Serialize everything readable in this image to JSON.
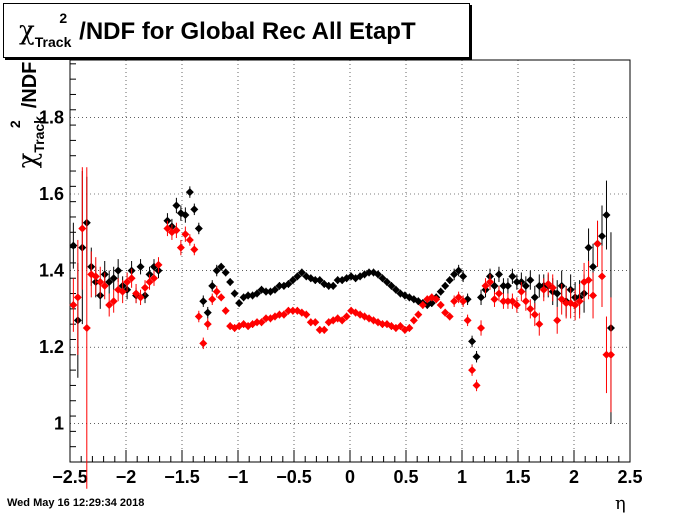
{
  "title": {
    "chi": "χ",
    "sup": "2",
    "sub": "Track",
    "rest": "/NDF for Global Rec All EtapT"
  },
  "ylabel": {
    "chi": "χ",
    "sup": "2",
    "sub": "Track",
    "rest": "/NDF"
  },
  "xlabel": "η",
  "timestamp": "Wed May 16 12:29:34 2018",
  "chart_data": {
    "type": "scatter",
    "xlim": [
      -2.5,
      2.5
    ],
    "ylim": [
      0.9,
      1.95
    ],
    "grid": true,
    "x_ticks": [
      "−2.5",
      "−2",
      "−1.5",
      "−1",
      "−0.5",
      "0",
      "0.5",
      "1",
      "1.5",
      "2",
      "2.5"
    ],
    "y_ticks": [
      "1",
      "1.2",
      "1.4",
      "1.6",
      "1.8"
    ],
    "series": [
      {
        "color": "#000000",
        "points": [
          [
            -2.47,
            1.465,
            0.06
          ],
          [
            -2.43,
            1.27,
            0.15
          ],
          [
            -2.39,
            1.46,
            0.2
          ],
          [
            -2.35,
            1.525,
            0.12
          ],
          [
            -2.31,
            1.41,
            0.05
          ],
          [
            -2.27,
            1.37,
            0.04
          ],
          [
            -2.23,
            1.335,
            0.035
          ],
          [
            -2.19,
            1.39,
            0.035
          ],
          [
            -2.15,
            1.37,
            0.03
          ],
          [
            -2.11,
            1.38,
            0.03
          ],
          [
            -2.07,
            1.4,
            0.03
          ],
          [
            -2.03,
            1.36,
            0.025
          ],
          [
            -1.99,
            1.35,
            0.025
          ],
          [
            -1.95,
            1.4,
            0.025
          ],
          [
            -1.91,
            1.335,
            0.02
          ],
          [
            -1.87,
            1.41,
            0.02
          ],
          [
            -1.83,
            1.335,
            0.02
          ],
          [
            -1.79,
            1.39,
            0.02
          ],
          [
            -1.75,
            1.41,
            0.02
          ],
          [
            -1.71,
            1.4,
            0.02
          ],
          [
            -1.63,
            1.53,
            0.02
          ],
          [
            -1.59,
            1.515,
            0.02
          ],
          [
            -1.55,
            1.57,
            0.02
          ],
          [
            -1.51,
            1.55,
            0.02
          ],
          [
            -1.47,
            1.545,
            0.02
          ],
          [
            -1.43,
            1.605,
            0.015
          ],
          [
            -1.39,
            1.56,
            0.015
          ],
          [
            -1.35,
            1.51,
            0.015
          ],
          [
            -1.31,
            1.32,
            0.015
          ],
          [
            -1.27,
            1.29,
            0.015
          ],
          [
            -1.23,
            1.36,
            0.015
          ],
          [
            -1.19,
            1.4,
            0.015
          ],
          [
            -1.15,
            1.41,
            0.01
          ],
          [
            -1.11,
            1.395,
            0.01
          ],
          [
            -1.07,
            1.37,
            0.01
          ],
          [
            -1.03,
            1.34,
            0.01
          ],
          [
            -0.99,
            1.315,
            0.01
          ],
          [
            -0.95,
            1.33,
            0.01
          ],
          [
            -0.91,
            1.335,
            0.01
          ],
          [
            -0.87,
            1.335,
            0.01
          ],
          [
            -0.83,
            1.34,
            0.01
          ],
          [
            -0.79,
            1.35,
            0.01
          ],
          [
            -0.75,
            1.345,
            0.01
          ],
          [
            -0.71,
            1.345,
            0.01
          ],
          [
            -0.67,
            1.35,
            0.01
          ],
          [
            -0.63,
            1.36,
            0.01
          ],
          [
            -0.59,
            1.36,
            0.01
          ],
          [
            -0.55,
            1.365,
            0.01
          ],
          [
            -0.51,
            1.375,
            0.01
          ],
          [
            -0.47,
            1.385,
            0.01
          ],
          [
            -0.43,
            1.395,
            0.01
          ],
          [
            -0.39,
            1.385,
            0.01
          ],
          [
            -0.35,
            1.38,
            0.01
          ],
          [
            -0.31,
            1.375,
            0.01
          ],
          [
            -0.27,
            1.375,
            0.01
          ],
          [
            -0.23,
            1.365,
            0.01
          ],
          [
            -0.19,
            1.36,
            0.01
          ],
          [
            -0.15,
            1.36,
            0.01
          ],
          [
            -0.11,
            1.375,
            0.01
          ],
          [
            -0.07,
            1.375,
            0.01
          ],
          [
            -0.03,
            1.38,
            0.01
          ],
          [
            0.01,
            1.385,
            0.01
          ],
          [
            0.05,
            1.38,
            0.01
          ],
          [
            0.09,
            1.385,
            0.01
          ],
          [
            0.13,
            1.39,
            0.01
          ],
          [
            0.17,
            1.395,
            0.01
          ],
          [
            0.21,
            1.395,
            0.01
          ],
          [
            0.25,
            1.39,
            0.01
          ],
          [
            0.29,
            1.38,
            0.01
          ],
          [
            0.33,
            1.37,
            0.01
          ],
          [
            0.37,
            1.36,
            0.01
          ],
          [
            0.41,
            1.35,
            0.01
          ],
          [
            0.45,
            1.34,
            0.01
          ],
          [
            0.49,
            1.335,
            0.01
          ],
          [
            0.53,
            1.33,
            0.01
          ],
          [
            0.57,
            1.325,
            0.01
          ],
          [
            0.61,
            1.32,
            0.01
          ],
          [
            0.65,
            1.315,
            0.01
          ],
          [
            0.69,
            1.31,
            0.01
          ],
          [
            0.73,
            1.315,
            0.01
          ],
          [
            0.77,
            1.33,
            0.01
          ],
          [
            0.81,
            1.345,
            0.01
          ],
          [
            0.85,
            1.36,
            0.01
          ],
          [
            0.89,
            1.375,
            0.01
          ],
          [
            0.93,
            1.39,
            0.015
          ],
          [
            0.97,
            1.4,
            0.015
          ],
          [
            1.01,
            1.385,
            0.015
          ],
          [
            1.05,
            1.325,
            0.015
          ],
          [
            1.09,
            1.215,
            0.015
          ],
          [
            1.13,
            1.175,
            0.015
          ],
          [
            1.17,
            1.33,
            0.02
          ],
          [
            1.21,
            1.35,
            0.02
          ],
          [
            1.25,
            1.385,
            0.02
          ],
          [
            1.29,
            1.36,
            0.02
          ],
          [
            1.33,
            1.39,
            0.02
          ],
          [
            1.37,
            1.36,
            0.02
          ],
          [
            1.41,
            1.36,
            0.02
          ],
          [
            1.45,
            1.385,
            0.02
          ],
          [
            1.49,
            1.37,
            0.02
          ],
          [
            1.53,
            1.37,
            0.025
          ],
          [
            1.57,
            1.36,
            0.025
          ],
          [
            1.61,
            1.375,
            0.025
          ],
          [
            1.65,
            1.33,
            0.03
          ],
          [
            1.69,
            1.36,
            0.03
          ],
          [
            1.73,
            1.36,
            0.03
          ],
          [
            1.77,
            1.36,
            0.03
          ],
          [
            1.81,
            1.345,
            0.035
          ],
          [
            1.85,
            1.34,
            0.035
          ],
          [
            1.89,
            1.36,
            0.04
          ],
          [
            1.93,
            1.32,
            0.04
          ],
          [
            1.97,
            1.35,
            0.04
          ],
          [
            2.01,
            1.33,
            0.04
          ],
          [
            2.05,
            1.33,
            0.045
          ],
          [
            2.09,
            1.34,
            0.05
          ],
          [
            2.13,
            1.46,
            0.05
          ],
          [
            2.17,
            1.41,
            0.06
          ],
          [
            2.21,
            1.47,
            0.06
          ],
          [
            2.25,
            1.49,
            0.08
          ],
          [
            2.29,
            1.545,
            0.09
          ],
          [
            2.33,
            1.25,
            0.25
          ]
        ]
      },
      {
        "color": "#ff0000",
        "points": [
          [
            -2.47,
            1.31,
            0.07
          ],
          [
            -2.43,
            1.33,
            0.15
          ],
          [
            -2.39,
            1.51,
            0.16
          ],
          [
            -2.35,
            1.25,
            0.42
          ],
          [
            -2.31,
            1.39,
            0.06
          ],
          [
            -2.27,
            1.385,
            0.05
          ],
          [
            -2.23,
            1.37,
            0.04
          ],
          [
            -2.19,
            1.36,
            0.035
          ],
          [
            -2.15,
            1.31,
            0.03
          ],
          [
            -2.11,
            1.32,
            0.03
          ],
          [
            -2.07,
            1.35,
            0.03
          ],
          [
            -2.03,
            1.345,
            0.03
          ],
          [
            -1.99,
            1.37,
            0.025
          ],
          [
            -1.95,
            1.38,
            0.025
          ],
          [
            -1.91,
            1.34,
            0.025
          ],
          [
            -1.87,
            1.33,
            0.02
          ],
          [
            -1.83,
            1.355,
            0.02
          ],
          [
            -1.79,
            1.37,
            0.02
          ],
          [
            -1.75,
            1.38,
            0.02
          ],
          [
            -1.71,
            1.415,
            0.02
          ],
          [
            -1.63,
            1.51,
            0.02
          ],
          [
            -1.59,
            1.5,
            0.02
          ],
          [
            -1.55,
            1.505,
            0.02
          ],
          [
            -1.51,
            1.46,
            0.02
          ],
          [
            -1.47,
            1.495,
            0.02
          ],
          [
            -1.43,
            1.48,
            0.015
          ],
          [
            -1.39,
            1.455,
            0.015
          ],
          [
            -1.35,
            1.28,
            0.015
          ],
          [
            -1.31,
            1.21,
            0.015
          ],
          [
            -1.27,
            1.26,
            0.015
          ],
          [
            -1.23,
            1.325,
            0.015
          ],
          [
            -1.19,
            1.345,
            0.015
          ],
          [
            -1.15,
            1.33,
            0.01
          ],
          [
            -1.11,
            1.295,
            0.01
          ],
          [
            -1.07,
            1.255,
            0.01
          ],
          [
            -1.03,
            1.25,
            0.01
          ],
          [
            -0.99,
            1.255,
            0.01
          ],
          [
            -0.95,
            1.26,
            0.01
          ],
          [
            -0.91,
            1.255,
            0.01
          ],
          [
            -0.87,
            1.26,
            0.01
          ],
          [
            -0.83,
            1.265,
            0.01
          ],
          [
            -0.79,
            1.265,
            0.01
          ],
          [
            -0.75,
            1.275,
            0.01
          ],
          [
            -0.71,
            1.275,
            0.01
          ],
          [
            -0.67,
            1.28,
            0.01
          ],
          [
            -0.63,
            1.285,
            0.01
          ],
          [
            -0.59,
            1.285,
            0.01
          ],
          [
            -0.55,
            1.295,
            0.01
          ],
          [
            -0.51,
            1.295,
            0.01
          ],
          [
            -0.47,
            1.295,
            0.01
          ],
          [
            -0.43,
            1.29,
            0.01
          ],
          [
            -0.39,
            1.285,
            0.01
          ],
          [
            -0.35,
            1.265,
            0.01
          ],
          [
            -0.31,
            1.265,
            0.01
          ],
          [
            -0.27,
            1.245,
            0.01
          ],
          [
            -0.23,
            1.245,
            0.01
          ],
          [
            -0.19,
            1.265,
            0.01
          ],
          [
            -0.15,
            1.27,
            0.01
          ],
          [
            -0.11,
            1.275,
            0.01
          ],
          [
            -0.07,
            1.27,
            0.01
          ],
          [
            -0.03,
            1.28,
            0.01
          ],
          [
            0.01,
            1.295,
            0.01
          ],
          [
            0.05,
            1.29,
            0.01
          ],
          [
            0.09,
            1.285,
            0.01
          ],
          [
            0.13,
            1.28,
            0.01
          ],
          [
            0.17,
            1.275,
            0.01
          ],
          [
            0.21,
            1.27,
            0.01
          ],
          [
            0.25,
            1.265,
            0.01
          ],
          [
            0.29,
            1.26,
            0.01
          ],
          [
            0.33,
            1.26,
            0.01
          ],
          [
            0.37,
            1.255,
            0.01
          ],
          [
            0.41,
            1.25,
            0.01
          ],
          [
            0.45,
            1.255,
            0.01
          ],
          [
            0.49,
            1.245,
            0.01
          ],
          [
            0.53,
            1.25,
            0.01
          ],
          [
            0.57,
            1.27,
            0.01
          ],
          [
            0.61,
            1.285,
            0.01
          ],
          [
            0.65,
            1.31,
            0.01
          ],
          [
            0.69,
            1.325,
            0.01
          ],
          [
            0.73,
            1.33,
            0.01
          ],
          [
            0.77,
            1.325,
            0.01
          ],
          [
            0.81,
            1.31,
            0.01
          ],
          [
            0.85,
            1.29,
            0.01
          ],
          [
            0.89,
            1.28,
            0.01
          ],
          [
            0.93,
            1.32,
            0.015
          ],
          [
            0.97,
            1.33,
            0.015
          ],
          [
            1.01,
            1.32,
            0.015
          ],
          [
            1.05,
            1.27,
            0.015
          ],
          [
            1.09,
            1.14,
            0.015
          ],
          [
            1.13,
            1.1,
            0.015
          ],
          [
            1.17,
            1.25,
            0.02
          ],
          [
            1.21,
            1.36,
            0.02
          ],
          [
            1.25,
            1.37,
            0.02
          ],
          [
            1.29,
            1.325,
            0.02
          ],
          [
            1.33,
            1.34,
            0.02
          ],
          [
            1.37,
            1.32,
            0.02
          ],
          [
            1.41,
            1.32,
            0.02
          ],
          [
            1.45,
            1.32,
            0.02
          ],
          [
            1.49,
            1.31,
            0.02
          ],
          [
            1.53,
            1.345,
            0.025
          ],
          [
            1.57,
            1.32,
            0.025
          ],
          [
            1.61,
            1.3,
            0.025
          ],
          [
            1.65,
            1.285,
            0.03
          ],
          [
            1.69,
            1.26,
            0.03
          ],
          [
            1.73,
            1.35,
            0.03
          ],
          [
            1.77,
            1.365,
            0.03
          ],
          [
            1.81,
            1.355,
            0.035
          ],
          [
            1.85,
            1.27,
            0.035
          ],
          [
            1.89,
            1.325,
            0.04
          ],
          [
            1.93,
            1.315,
            0.04
          ],
          [
            1.97,
            1.315,
            0.04
          ],
          [
            2.01,
            1.31,
            0.04
          ],
          [
            2.05,
            1.32,
            0.045
          ],
          [
            2.09,
            1.37,
            0.05
          ],
          [
            2.13,
            1.375,
            0.05
          ],
          [
            2.17,
            1.335,
            0.06
          ],
          [
            2.21,
            1.47,
            0.06
          ],
          [
            2.25,
            1.385,
            0.08
          ],
          [
            2.29,
            1.18,
            0.1
          ],
          [
            2.33,
            1.18,
            0.15
          ]
        ]
      }
    ]
  }
}
